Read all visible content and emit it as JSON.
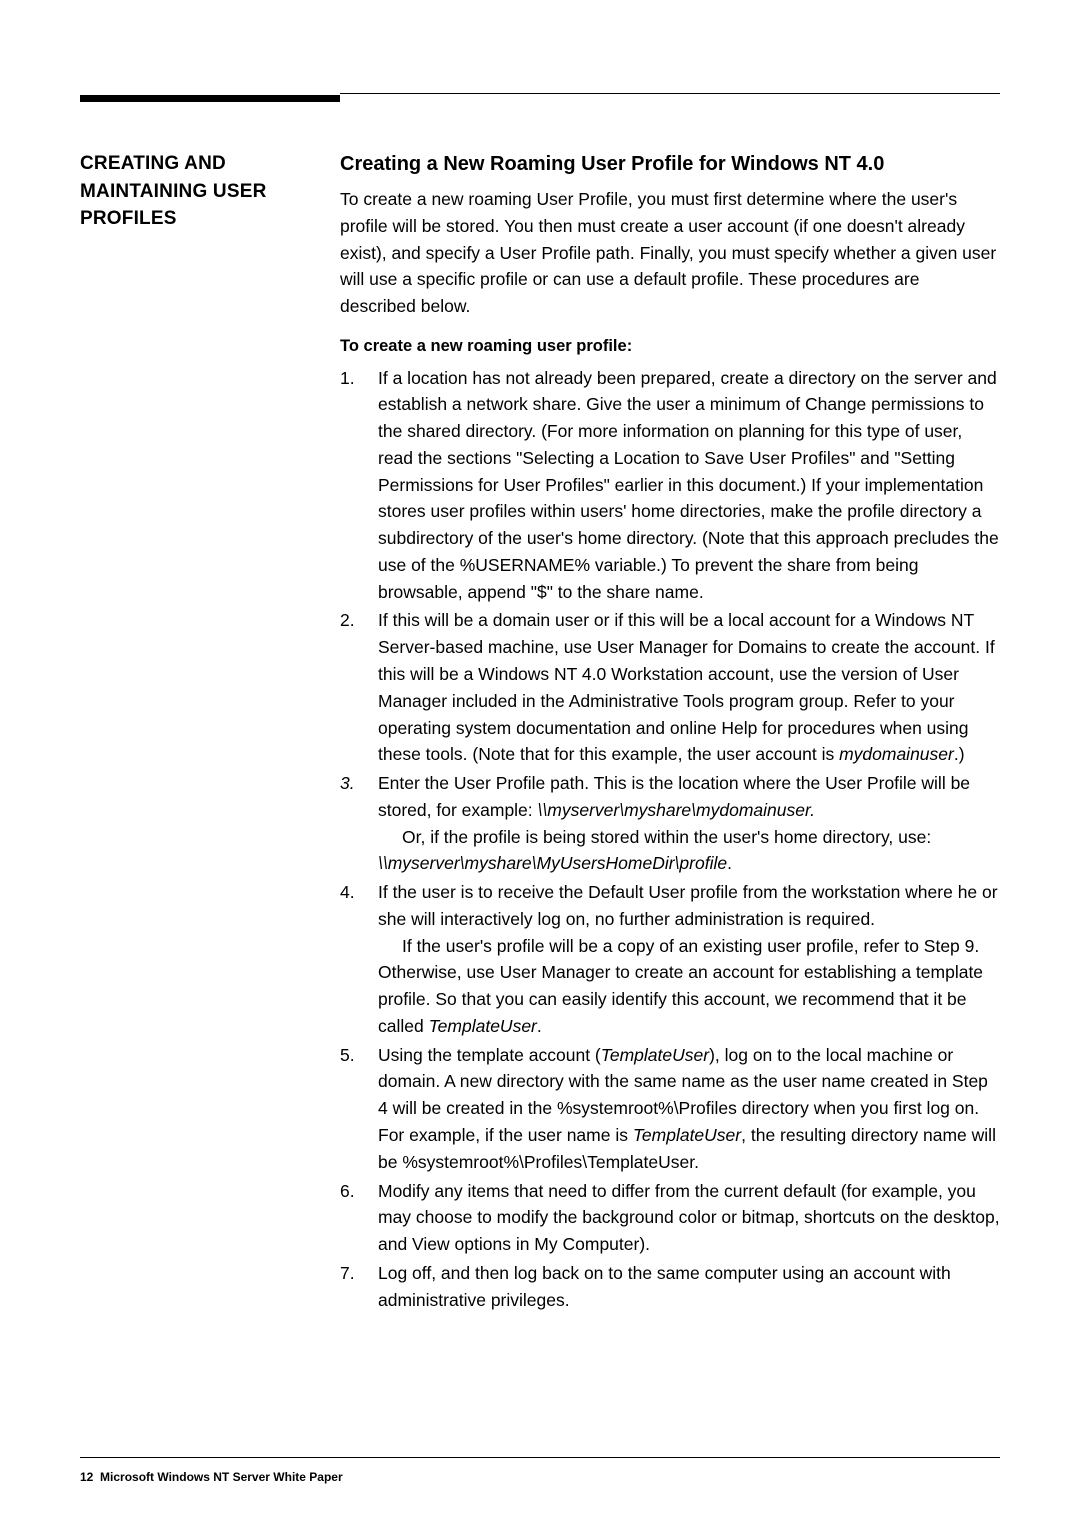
{
  "sidebar": {
    "heading": "CREATING AND\nMAINTAINING USER\nPROFILES"
  },
  "main": {
    "heading": "Creating a New Roaming User Profile for Windows NT 4.0",
    "intro": "To create a new roaming User Profile, you must first determine where the user's profile will be stored. You then must create a user account (if one doesn't already exist), and specify a User Profile path. Finally, you must specify whether a given user will use a specific profile or can use a default profile. These procedures are described below.",
    "sub": "To create a new roaming user profile:",
    "steps": {
      "s1": "If a location has not already been prepared, create a directory on the server and establish a network share. Give the user a minimum of Change permissions to the shared directory. (For more information on planning for this type of user, read the sections \"Selecting a Location to Save User Profiles\" and \"Setting Permissions for User Profiles\" earlier in this document.) If your implementation stores user profiles within users' home directories, make the profile directory a subdirectory of the user's home directory. (Note that this approach precludes the use of the %USERNAME% variable.) To prevent the share from being browsable, append \"$\" to the share name.",
      "s2a": "If this will be a domain user or if this will be a local account for a Windows NT Server-based machine, use User Manager for Domains to create the account. If this will be a Windows NT 4.0 Workstation account, use the version of User Manager included in the Administrative Tools program group. Refer to your operating system documentation and online Help for procedures when using these tools. (Note that for this example, the user account is ",
      "s2b": "mydomainuser",
      "s2c": ".)",
      "s3a": "Enter the User Profile path. This is the location where the User Profile will be stored, for example: ",
      "s3b": "\\\\myserver\\myshare\\mydomainuser.",
      "s3c": "Or, if the profile is being stored within the user's home directory, use: ",
      "s3d": "\\\\myserver\\myshare\\MyUsersHomeDir\\profile",
      "s3e": ".",
      "s4a": "If the user is to receive the Default User profile from the workstation where he or she will interactively log on, no further administration is required.",
      "s4b": "If the user's profile will be a copy of an existing user profile, refer to Step 9. Otherwise, use User Manager to create an account for establishing a template profile. So that you can easily identify this account, we recommend that it be called ",
      "s4c": "TemplateUser",
      "s4d": ".",
      "s5a": "Using the template account (",
      "s5b": "TemplateUser",
      "s5c": "), log on to the local machine or domain. A new directory with the same name as the user name created in Step 4 will be created in the %systemroot%\\Profiles directory when you first log on. For example, if the user name is ",
      "s5d": "TemplateUser",
      "s5e": ", the resulting directory name will be %systemroot%\\Profiles\\TemplateUser.",
      "s6": "Modify any items that need to differ from the current default (for example, you may choose to modify the background color or bitmap, shortcuts on the desktop, and View options in My Computer).",
      "s7": "Log off, and then log back on to the same computer using an account with administrative privileges."
    },
    "nums": {
      "n1": "1.",
      "n2": "2.",
      "n3": "3.",
      "n4": "4.",
      "n5": "5.",
      "n6": "6.",
      "n7": "7."
    }
  },
  "footer": {
    "page": "12",
    "title": "Microsoft Windows NT Server White Paper"
  }
}
